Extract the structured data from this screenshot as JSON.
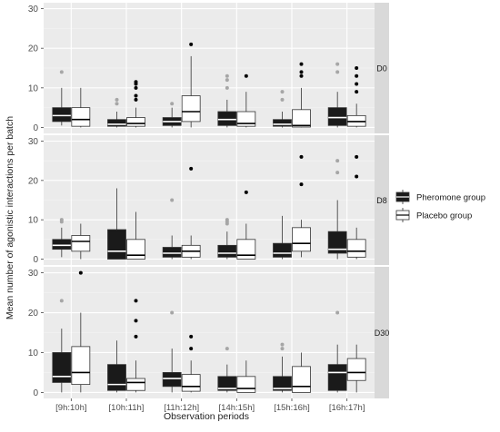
{
  "chart_data": {
    "type": "boxplot",
    "title": "",
    "xlabel": "Observation periods",
    "ylabel": "Mean number of agonistic interactions per batch",
    "categories": [
      "[9h:10h]",
      "[10h:11h]",
      "[11h:12h]",
      "[14h:15h]",
      "[15h:16h]",
      "[16h:17h]"
    ],
    "y_ticks": [
      0,
      10,
      20,
      30
    ],
    "ylim": [
      -1.5,
      31.5
    ],
    "grid": true,
    "legend_position": "right",
    "legend": [
      {
        "label": "Pheromone group",
        "fill": "#1a1a1a"
      },
      {
        "label": "Placebo group",
        "fill": "#ffffff"
      }
    ],
    "facets": [
      {
        "label": "D0",
        "pheromone": [
          {
            "min": 0.5,
            "q1": 1.5,
            "median": 3,
            "q3": 5,
            "max": 10,
            "outliers": [
              14
            ]
          },
          {
            "min": 0,
            "q1": 0.3,
            "median": 0.8,
            "q3": 2,
            "max": 4,
            "outliers": [
              6,
              7
            ]
          },
          {
            "min": 0,
            "q1": 0.5,
            "median": 1.5,
            "q3": 2.5,
            "max": 5,
            "outliers": [
              6
            ]
          },
          {
            "min": 0,
            "q1": 0.5,
            "median": 2,
            "q3": 4,
            "max": 7,
            "outliers": [
              10,
              12,
              13
            ]
          },
          {
            "min": 0,
            "q1": 0.3,
            "median": 0.8,
            "q3": 2,
            "max": 4,
            "outliers": [
              7,
              9
            ]
          },
          {
            "min": 0,
            "q1": 0.5,
            "median": 2.5,
            "q3": 5,
            "max": 9,
            "outliers": [
              14,
              16
            ]
          }
        ],
        "placebo": [
          {
            "min": 0,
            "q1": 0.3,
            "median": 2,
            "q3": 5,
            "max": 10,
            "outliers": []
          },
          {
            "min": 0,
            "q1": 0.3,
            "median": 1,
            "q3": 2.5,
            "max": 5,
            "outliers": [
              7,
              8,
              10,
              11,
              11.5
            ]
          },
          {
            "min": 0,
            "q1": 1.5,
            "median": 4,
            "q3": 8,
            "max": 18,
            "outliers": [
              21
            ]
          },
          {
            "min": 0,
            "q1": 0.3,
            "median": 1,
            "q3": 4,
            "max": 9,
            "outliers": [
              13
            ]
          },
          {
            "min": 0,
            "q1": 0.1,
            "median": 0.5,
            "q3": 4.5,
            "max": 10,
            "outliers": [
              13,
              14,
              16
            ]
          },
          {
            "min": 0,
            "q1": 0.3,
            "median": 1.5,
            "q3": 3,
            "max": 6,
            "outliers": [
              9,
              11,
              13,
              15
            ]
          }
        ]
      },
      {
        "label": "D8",
        "pheromone": [
          {
            "min": 0.5,
            "q1": 2.5,
            "median": 3.5,
            "q3": 5,
            "max": 8,
            "outliers": [
              9.5,
              10
            ]
          },
          {
            "min": 0,
            "q1": 0,
            "median": 2,
            "q3": 7.5,
            "max": 18,
            "outliers": []
          },
          {
            "min": 0,
            "q1": 0.5,
            "median": 1.5,
            "q3": 3,
            "max": 6,
            "outliers": [
              15
            ]
          },
          {
            "min": 0,
            "q1": 0.5,
            "median": 1.5,
            "q3": 3.5,
            "max": 7,
            "outliers": [
              9,
              9.5,
              10
            ]
          },
          {
            "min": 0,
            "q1": 0.5,
            "median": 1.5,
            "q3": 4,
            "max": 11,
            "outliers": []
          },
          {
            "min": 0,
            "q1": 1.5,
            "median": 2.5,
            "q3": 7,
            "max": 15,
            "outliers": [
              22,
              25
            ]
          }
        ],
        "placebo": [
          {
            "min": 0,
            "q1": 2,
            "median": 4.5,
            "q3": 6,
            "max": 9,
            "outliers": []
          },
          {
            "min": 0,
            "q1": 0,
            "median": 1,
            "q3": 5,
            "max": 12,
            "outliers": []
          },
          {
            "min": 0,
            "q1": 0.5,
            "median": 2,
            "q3": 3.5,
            "max": 6,
            "outliers": [
              23
            ]
          },
          {
            "min": 0,
            "q1": 0,
            "median": 1,
            "q3": 5,
            "max": 9,
            "outliers": [
              17
            ]
          },
          {
            "min": 0.5,
            "q1": 2,
            "median": 4,
            "q3": 8,
            "max": 10,
            "outliers": [
              19,
              26
            ]
          },
          {
            "min": 0,
            "q1": 0.5,
            "median": 2,
            "q3": 5,
            "max": 8,
            "outliers": [
              21,
              26
            ]
          }
        ]
      },
      {
        "label": "D30",
        "pheromone": [
          {
            "min": 0,
            "q1": 2.5,
            "median": 4,
            "q3": 10,
            "max": 16,
            "outliers": [
              23
            ]
          },
          {
            "min": 0,
            "q1": 0.5,
            "median": 2,
            "q3": 7,
            "max": 13,
            "outliers": []
          },
          {
            "min": 0,
            "q1": 1.5,
            "median": 3.5,
            "q3": 5,
            "max": 11,
            "outliers": [
              20
            ]
          },
          {
            "min": 0,
            "q1": 0.5,
            "median": 1,
            "q3": 4,
            "max": 7,
            "outliers": [
              11
            ]
          },
          {
            "min": 0,
            "q1": 0.5,
            "median": 1,
            "q3": 4,
            "max": 9,
            "outliers": [
              11,
              12
            ]
          },
          {
            "min": 0,
            "q1": 0.5,
            "median": 5,
            "q3": 7,
            "max": 12,
            "outliers": [
              20
            ]
          }
        ],
        "placebo": [
          {
            "min": 0,
            "q1": 2,
            "median": 5,
            "q3": 11.5,
            "max": 20,
            "outliers": [
              30
            ]
          },
          {
            "min": 0,
            "q1": 0.5,
            "median": 2.5,
            "q3": 3.5,
            "max": 8,
            "outliers": [
              14,
              18,
              23
            ]
          },
          {
            "min": 0,
            "q1": 0.3,
            "median": 1.5,
            "q3": 4.5,
            "max": 8,
            "outliers": [
              11,
              14
            ]
          },
          {
            "min": 0,
            "q1": 0,
            "median": 1,
            "q3": 4,
            "max": 8,
            "outliers": []
          },
          {
            "min": 0,
            "q1": 0,
            "median": 1.5,
            "q3": 6.5,
            "max": 10,
            "outliers": []
          },
          {
            "min": 0,
            "q1": 3,
            "median": 5,
            "q3": 8.5,
            "max": 12,
            "outliers": []
          }
        ]
      }
    ]
  }
}
